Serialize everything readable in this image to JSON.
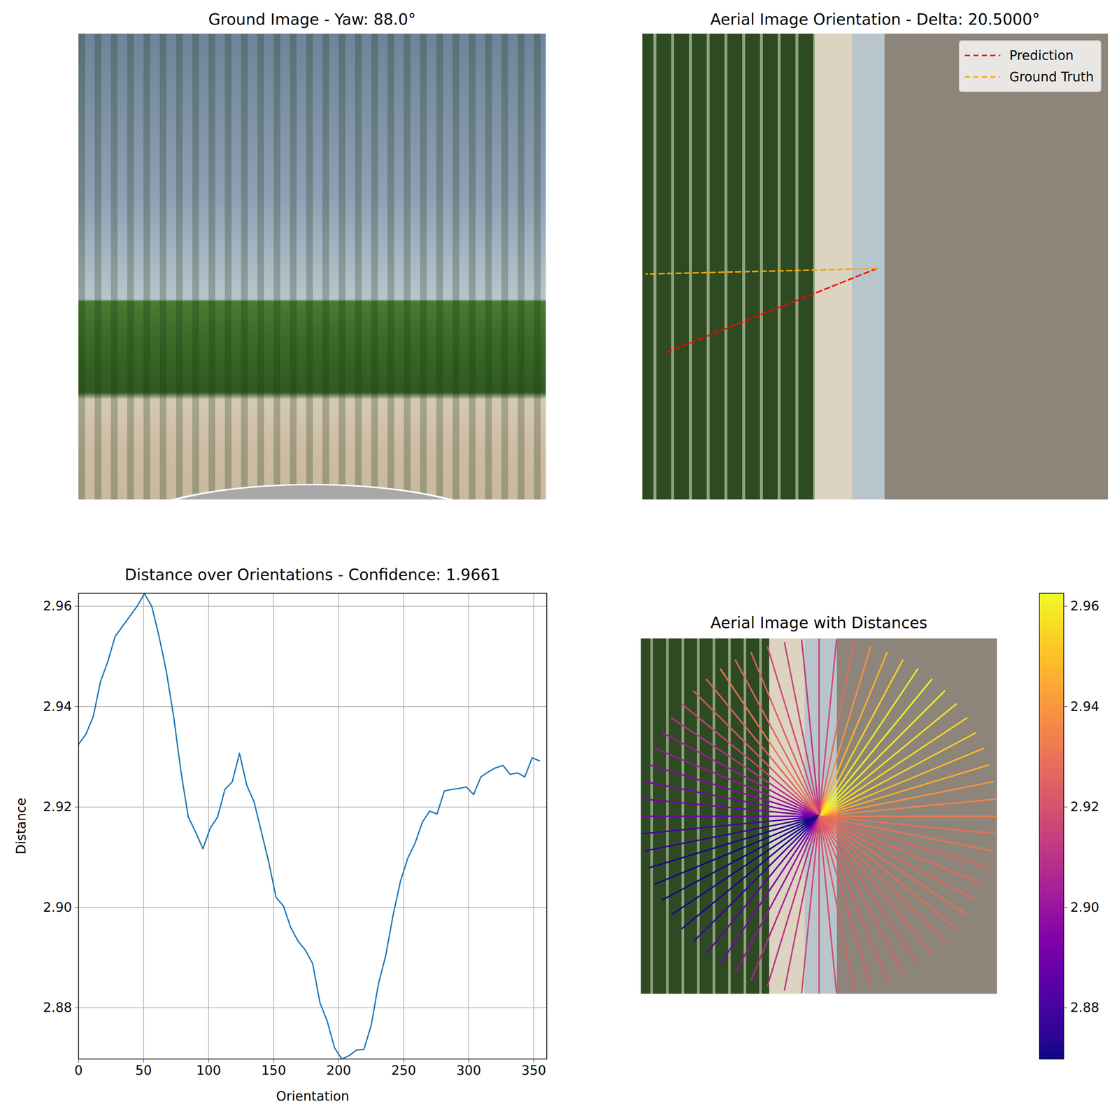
{
  "chart_data": [
    {
      "type": "image",
      "title": "Ground Image - Yaw: 88.0°"
    },
    {
      "type": "orientation",
      "title": "Aerial Image Orientation - Delta: 20.5000°",
      "xlim": [
        0,
        256
      ],
      "ylim": [
        256,
        0
      ],
      "tick_labels": false,
      "legend": "upper right",
      "series": [
        {
          "name": "Prediction",
          "color": "red",
          "line_style": "dashed",
          "x": [
            128.8,
            11.8
          ],
          "y": [
            129,
            175.6
          ]
        },
        {
          "name": "Ground Truth",
          "color": "orange",
          "line_style": "dashed",
          "x": [
            128.8,
            2
          ],
          "y": [
            129,
            132
          ]
        }
      ]
    },
    {
      "type": "line",
      "title": "Distance over Orientations - Confidence: 1.9661",
      "x_label": "Orientation",
      "y_label": "Distance",
      "color": "#1f77b4",
      "x": [
        0,
        5.625,
        11.25,
        16.875,
        22.5,
        28.125,
        33.75,
        39.375,
        45,
        50.625,
        56.25,
        61.875,
        67.5,
        73.125,
        78.75,
        84.375,
        90,
        95.625,
        101.25,
        106.875,
        112.5,
        118.125,
        123.75,
        129.375,
        135,
        140.625,
        146.25,
        151.875,
        157.5,
        163.125,
        168.75,
        174.375,
        180,
        185.625,
        191.25,
        196.875,
        202.5,
        208.125,
        213.75,
        219.375,
        225,
        230.625,
        236.25,
        241.875,
        247.5,
        253.125,
        258.75,
        264.375,
        270,
        275.625,
        281.25,
        286.875,
        292.5,
        298.125,
        303.75,
        309.375,
        315,
        320.625,
        326.25,
        331.875,
        337.5,
        343.125,
        348.75,
        354.375
      ],
      "values": [
        2.9325,
        2.9345,
        2.938,
        2.945,
        2.949,
        2.954,
        2.956,
        2.958,
        2.96,
        2.9625,
        2.96,
        2.954,
        2.947,
        2.938,
        2.927,
        2.918,
        2.915,
        2.9117,
        2.9158,
        2.918,
        2.9235,
        2.925,
        2.9307,
        2.9243,
        2.921,
        2.915,
        2.909,
        2.902,
        2.9003,
        2.896,
        2.8933,
        2.8915,
        2.8888,
        2.881,
        2.8773,
        2.872,
        2.8698,
        2.8705,
        2.8716,
        2.8717,
        2.8765,
        2.8848,
        2.8905,
        2.8985,
        2.9052,
        2.9098,
        2.9128,
        2.917,
        2.9192,
        2.9186,
        2.9232,
        2.9235,
        2.9237,
        2.924,
        2.9225,
        2.926,
        2.927,
        2.9278,
        2.9283,
        2.9265,
        2.9268,
        2.926,
        2.9298,
        2.9292
      ],
      "xlim": [
        0,
        360
      ],
      "ylim": [
        2.8698,
        2.9626
      ],
      "xticks": [
        0,
        50,
        100,
        150,
        200,
        250,
        300,
        350
      ],
      "yticks": [
        2.88,
        {
          "value": 2.9,
          "label": "2.90"
        },
        2.92,
        2.94,
        2.96
      ],
      "grid": true
    },
    {
      "type": "radial",
      "title": "Aerial Image with Distances",
      "color": "plasma",
      "tick_labels": false,
      "x": [
        0,
        5.625,
        11.25,
        16.875,
        22.5,
        28.125,
        33.75,
        39.375,
        45,
        50.625,
        56.25,
        61.875,
        67.5,
        73.125,
        78.75,
        84.375,
        90,
        95.625,
        101.25,
        106.875,
        112.5,
        118.125,
        123.75,
        129.375,
        135,
        140.625,
        146.25,
        151.875,
        157.5,
        163.125,
        168.75,
        174.375,
        180,
        185.625,
        191.25,
        196.875,
        202.5,
        208.125,
        213.75,
        219.375,
        225,
        230.625,
        236.25,
        241.875,
        247.5,
        253.125,
        258.75,
        264.375,
        270,
        275.625,
        281.25,
        286.875,
        292.5,
        298.125,
        303.75,
        309.375,
        315,
        320.625,
        326.25,
        331.875,
        337.5,
        343.125,
        348.75,
        354.375
      ],
      "values": [
        2.9325,
        2.9345,
        2.938,
        2.945,
        2.949,
        2.954,
        2.956,
        2.958,
        2.96,
        2.9625,
        2.96,
        2.954,
        2.947,
        2.938,
        2.927,
        2.918,
        2.915,
        2.9117,
        2.9158,
        2.918,
        2.9235,
        2.925,
        2.9307,
        2.9243,
        2.921,
        2.915,
        2.909,
        2.902,
        2.9003,
        2.896,
        2.8933,
        2.8915,
        2.8888,
        2.881,
        2.8773,
        2.872,
        2.8698,
        2.8705,
        2.8716,
        2.8717,
        2.8765,
        2.8848,
        2.8905,
        2.8985,
        2.9052,
        2.9098,
        2.9128,
        2.917,
        2.9192,
        2.9186,
        2.9232,
        2.9235,
        2.9237,
        2.924,
        2.9225,
        2.926,
        2.927,
        2.9278,
        2.9283,
        2.9265,
        2.9268,
        2.926,
        2.9298,
        2.9292
      ],
      "colorbar": {
        "range": [
          2.8698,
          2.9626
        ],
        "ticks": [
          2.88,
          {
            "value": 2.9,
            "label": "2.90"
          },
          2.92,
          2.94,
          2.96
        ]
      }
    }
  ]
}
